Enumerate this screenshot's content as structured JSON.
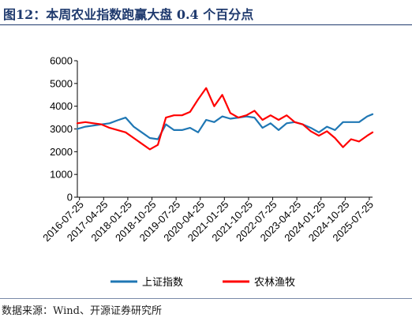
{
  "figure_title": "图12：本周农业指数跑赢大盘 0.4 个百分点",
  "source": "数据来源：Wind、开源证券研究所",
  "chart_data": {
    "type": "line",
    "ylim": [
      0,
      6000
    ],
    "y_ticks": [
      0,
      1000,
      2000,
      3000,
      4000,
      5000,
      6000
    ],
    "x_ticks": [
      "2016-07-25",
      "2017-04-25",
      "2018-01-25",
      "2018-10-25",
      "2019-07-25",
      "2020-04-25",
      "2021-01-25",
      "2021-10-25",
      "2022-07-25",
      "2023-04-25",
      "2024-01-25",
      "2024-10-25",
      "2025-07-25"
    ],
    "legend_position": "bottom",
    "series": [
      {
        "name": "上证指数",
        "color": "#1f77b4",
        "x": [
          "2016-07",
          "2016-10",
          "2017-01",
          "2017-04",
          "2017-07",
          "2017-10",
          "2018-01",
          "2018-04",
          "2018-07",
          "2018-10",
          "2019-01",
          "2019-04",
          "2019-07",
          "2019-10",
          "2020-01",
          "2020-04",
          "2020-07",
          "2020-10",
          "2021-01",
          "2021-04",
          "2021-07",
          "2021-10",
          "2022-01",
          "2022-04",
          "2022-07",
          "2022-10",
          "2023-01",
          "2023-04",
          "2023-07",
          "2023-10",
          "2024-01",
          "2024-04",
          "2024-07",
          "2024-10",
          "2025-01",
          "2025-04",
          "2025-07",
          "2025-09"
        ],
        "values": [
          3000,
          3100,
          3150,
          3200,
          3250,
          3380,
          3500,
          3100,
          2850,
          2600,
          2550,
          3200,
          2950,
          2950,
          3050,
          2850,
          3400,
          3300,
          3550,
          3450,
          3500,
          3550,
          3500,
          3050,
          3250,
          2950,
          3250,
          3300,
          3200,
          3050,
          2850,
          3100,
          2950,
          3300,
          3300,
          3300,
          3550,
          3650
        ]
      },
      {
        "name": "农林渔牧",
        "color": "#ff0000",
        "x": [
          "2016-07",
          "2016-10",
          "2017-01",
          "2017-04",
          "2017-07",
          "2017-10",
          "2018-01",
          "2018-04",
          "2018-07",
          "2018-10",
          "2019-01",
          "2019-04",
          "2019-07",
          "2019-10",
          "2020-01",
          "2020-04",
          "2020-07",
          "2020-10",
          "2021-01",
          "2021-04",
          "2021-07",
          "2021-10",
          "2022-01",
          "2022-04",
          "2022-07",
          "2022-10",
          "2023-01",
          "2023-04",
          "2023-07",
          "2023-10",
          "2024-01",
          "2024-04",
          "2024-07",
          "2024-10",
          "2025-01",
          "2025-04",
          "2025-07",
          "2025-09"
        ],
        "values": [
          3250,
          3300,
          3250,
          3200,
          3050,
          2950,
          2850,
          2600,
          2350,
          2100,
          2300,
          3500,
          3600,
          3600,
          3750,
          4300,
          4800,
          4000,
          4500,
          3700,
          3500,
          3600,
          3800,
          3400,
          3600,
          3400,
          3600,
          3300,
          3200,
          2900,
          2700,
          2900,
          2600,
          2200,
          2550,
          2450,
          2700,
          2850
        ]
      }
    ]
  }
}
